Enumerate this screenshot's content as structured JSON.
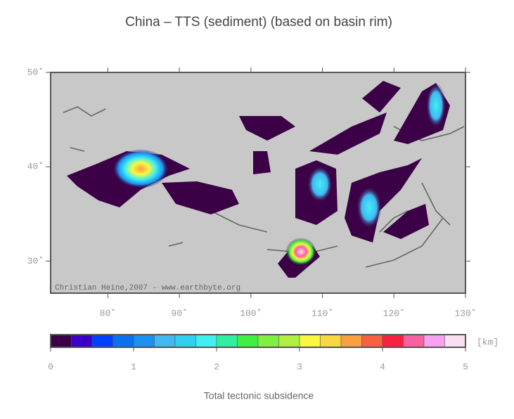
{
  "title": "China – TTS (sediment) (based on basin rim)",
  "credit": "Christian Heine,2007 - www.earthbyte.org",
  "map": {
    "xlim": [
      72,
      130
    ],
    "ylim": [
      26.6,
      50
    ],
    "xticks": [
      {
        "value": 80,
        "label": "80˚"
      },
      {
        "value": 90,
        "label": "90˚"
      },
      {
        "value": 100,
        "label": "100˚"
      },
      {
        "value": 110,
        "label": "110˚"
      },
      {
        "value": 120,
        "label": "120˚"
      },
      {
        "value": 130,
        "label": "130˚"
      }
    ],
    "yticks": [
      {
        "value": 30,
        "label": "30˚"
      },
      {
        "value": 40,
        "label": "40˚"
      },
      {
        "value": 50,
        "label": "50˚"
      }
    ]
  },
  "colorbar": {
    "range": [
      0,
      5
    ],
    "ticks": [
      0,
      1,
      2,
      3,
      4,
      5
    ],
    "unit": "[km]",
    "label": "Total tectonic subsidence",
    "colors": [
      "#3b0046",
      "#3a00c8",
      "#0040ff",
      "#0a70f0",
      "#1a90f0",
      "#40b8f0",
      "#30d0f0",
      "#40f0f0",
      "#30f0a0",
      "#40f040",
      "#80f040",
      "#b0f040",
      "#f8f840",
      "#f8d840",
      "#f8a040",
      "#f86040",
      "#f82040",
      "#f860a0",
      "#f8a0f0",
      "#f8e0f0"
    ]
  }
}
